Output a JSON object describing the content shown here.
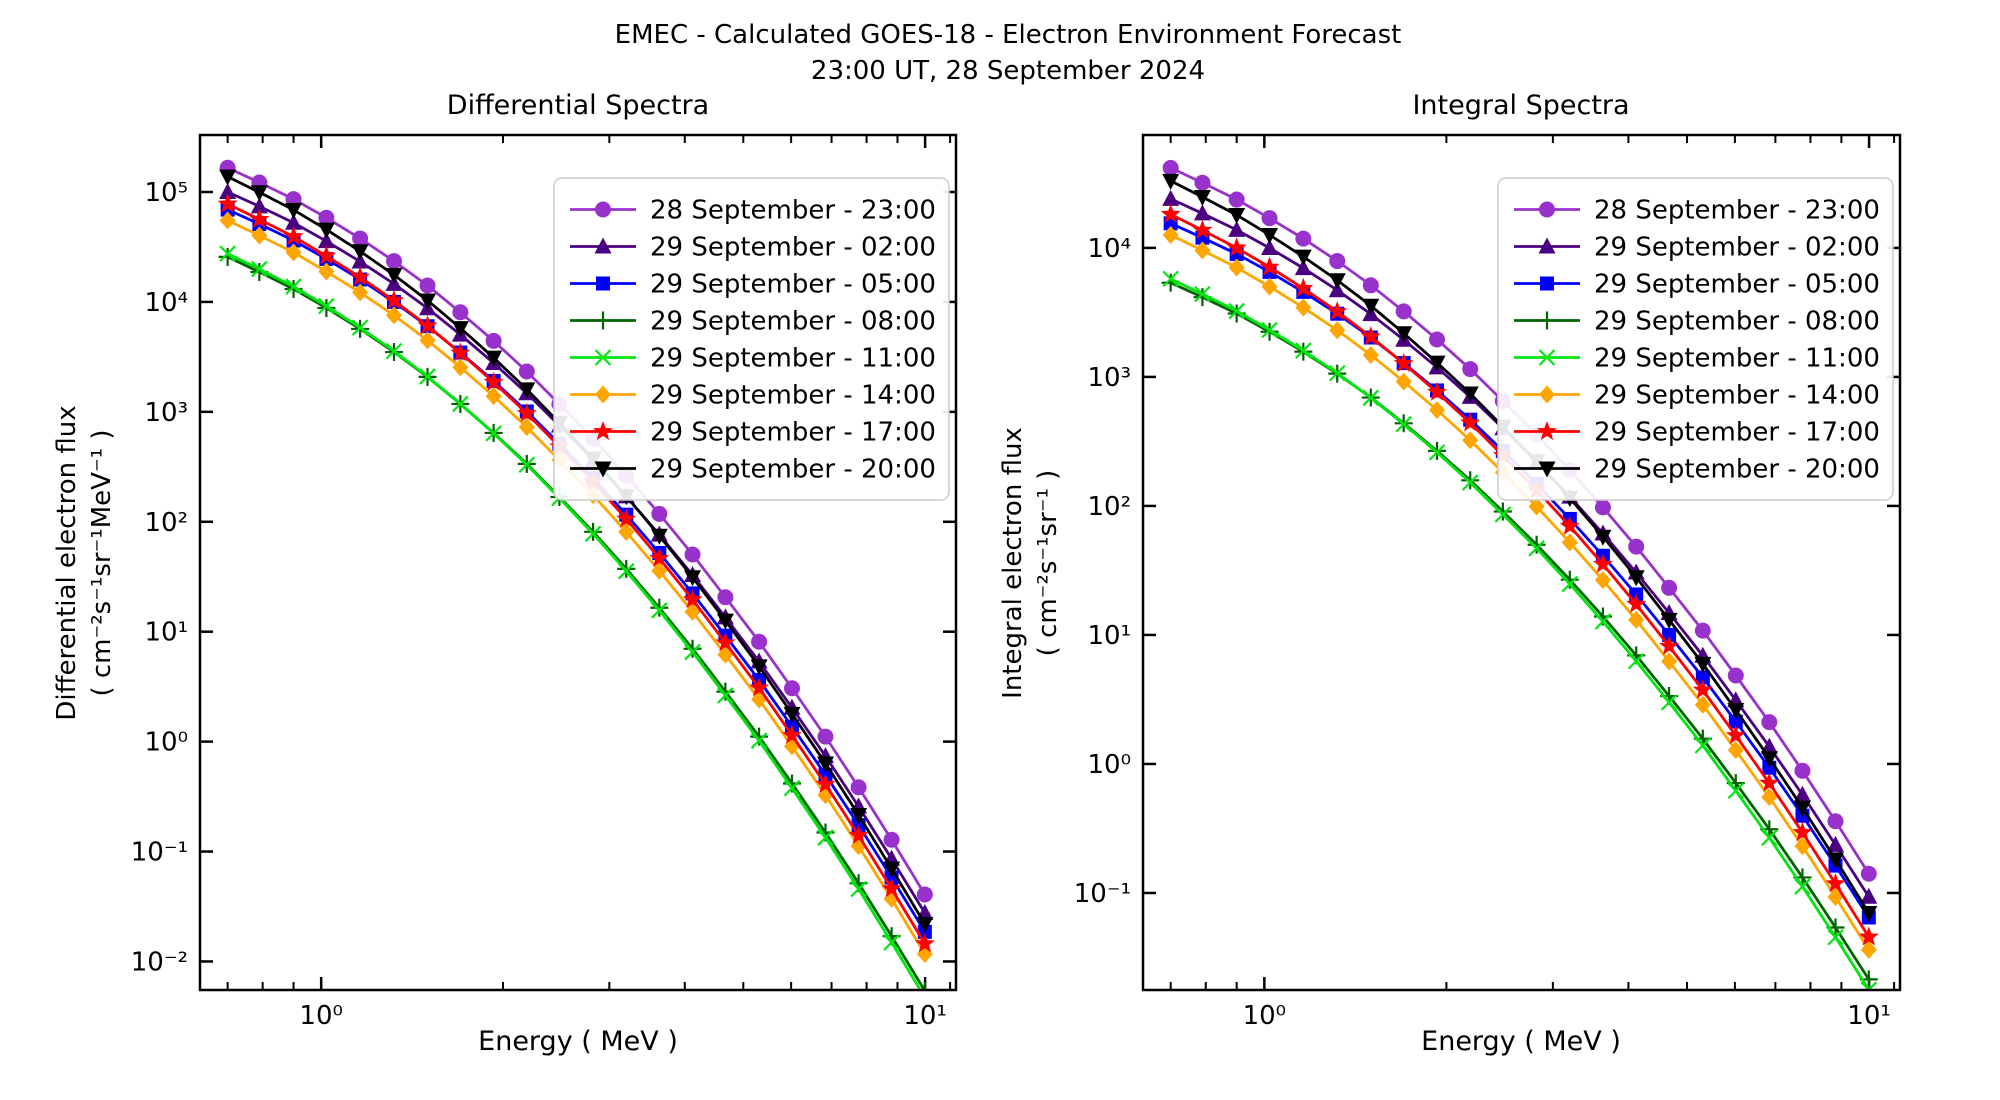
{
  "header": {
    "title_line1": "EMEC - Calculated GOES-18 - Electron Environment Forecast",
    "title_line2": "23:00 UT, 28 September 2024"
  },
  "chart_data": [
    {
      "type": "line",
      "title": "Differential Spectra",
      "xlabel": "Energy ( MeV )",
      "ylabel_line1": "Differential electron flux",
      "ylabel_line2": "( cm⁻²s⁻¹sr⁻¹MeV⁻¹ )",
      "xscale": "log",
      "yscale": "log",
      "grid": false,
      "legend_position": "upper right",
      "xlim": [
        0.63,
        11.25
      ],
      "ylim": [
        0.0055,
        330000
      ],
      "x_tick_exponents": [
        0,
        1
      ],
      "x_minor_ticks": [
        0.7,
        0.8,
        0.9,
        2,
        3,
        4,
        5,
        6,
        7,
        8,
        9,
        11
      ],
      "y_tick_exponents": [
        5,
        4,
        3,
        2,
        1,
        0,
        -1,
        -2
      ],
      "x": [
        0.7,
        0.79,
        0.9,
        1.02,
        1.16,
        1.32,
        1.5,
        1.7,
        1.93,
        2.19,
        2.48,
        2.82,
        3.2,
        3.63,
        4.12,
        4.67,
        5.31,
        6.02,
        6.84,
        7.76,
        8.8,
        9.99
      ],
      "series": [
        {
          "name": "28 September - 23:00",
          "color": "#9932CC",
          "marker": "circle",
          "values": [
            166000,
            122000,
            86100,
            58300,
            37800,
            23500,
            14100,
            8050,
            4420,
            2330,
            1175,
            569,
            264,
            118,
            50.4,
            20.6,
            8.11,
            3.06,
            1.11,
            0.384,
            0.128,
            0.0407
          ]
        },
        {
          "name": "29 September - 02:00",
          "color": "#4B0082",
          "marker": "triangle-up",
          "values": [
            100000,
            74000,
            52500,
            35700,
            23300,
            14600,
            8760,
            5040,
            2780,
            1475,
            749,
            365,
            170,
            76.4,
            32.8,
            13.5,
            5.35,
            2.03,
            0.737,
            0.257,
            0.086,
            0.0276
          ]
        },
        {
          "name": "29 September - 05:00",
          "color": "#0000FF",
          "marker": "square",
          "values": [
            69100,
            51100,
            36200,
            24600,
            16000,
            10000,
            6010,
            3460,
            1910,
            1008,
            512,
            249,
            116,
            52.0,
            22.3,
            9.19,
            3.63,
            1.37,
            0.499,
            0.174,
            0.058,
            0.0186
          ]
        },
        {
          "name": "29 September - 08:00",
          "color": "#006400",
          "marker": "plus",
          "values": [
            25700,
            18700,
            13100,
            8810,
            5680,
            3500,
            2080,
            1180,
            643,
            336,
            168,
            81.0,
            37.3,
            16.5,
            7.0,
            2.85,
            1.11,
            0.416,
            0.149,
            0.0514,
            0.017,
            0.0054
          ]
        },
        {
          "name": "29 September - 11:00",
          "color": "#00E60F",
          "marker": "x",
          "values": [
            27500,
            19900,
            13800,
            9170,
            5840,
            3570,
            2100,
            1180,
            637,
            330,
            164,
            77.8,
            35.5,
            15.6,
            6.53,
            2.63,
            1.02,
            0.377,
            0.134,
            0.0456,
            0.0149,
            0.0047
          ]
        },
        {
          "name": "29 September - 14:00",
          "color": "#FFA500",
          "marker": "diamond",
          "values": [
            55000,
            40200,
            28200,
            18900,
            12200,
            7550,
            4470,
            2540,
            1390,
            726,
            364,
            175,
            80.9,
            35.8,
            15.2,
            6.19,
            2.42,
            0.906,
            0.326,
            0.112,
            0.0371,
            0.0117
          ]
        },
        {
          "name": "29 September - 17:00",
          "color": "#FF0000",
          "marker": "star",
          "values": [
            77700,
            56400,
            39300,
            26200,
            16800,
            10300,
            6070,
            3430,
            1860,
            967,
            482,
            230,
            106,
            46.5,
            19.6,
            7.93,
            3.08,
            1.14,
            0.408,
            0.14,
            0.0459,
            0.0145
          ]
        },
        {
          "name": "29 September - 20:00",
          "color": "#000000",
          "marker": "triangle-down",
          "values": [
            138000,
            99400,
            68700,
            45500,
            28900,
            17600,
            10300,
            5780,
            3110,
            1600,
            793,
            376,
            171,
            74.7,
            31.3,
            12.6,
            4.84,
            1.79,
            0.633,
            0.215,
            0.07,
            0.0219
          ]
        }
      ]
    },
    {
      "type": "line",
      "title": "Integral Spectra",
      "xlabel": "Energy ( MeV )",
      "ylabel_line1": "Integral electron flux",
      "ylabel_line2": "( cm⁻²s⁻¹sr⁻¹ )",
      "xscale": "log",
      "yscale": "log",
      "grid": false,
      "legend_position": "upper right",
      "xlim": [
        0.63,
        11.25
      ],
      "ylim": [
        0.0177,
        75000
      ],
      "x_tick_exponents": [
        0,
        1
      ],
      "x_minor_ticks": [
        0.7,
        0.8,
        0.9,
        2,
        3,
        4,
        5,
        6,
        7,
        8,
        9,
        11
      ],
      "y_tick_exponents": [
        4,
        3,
        2,
        1,
        0,
        -1
      ],
      "x": [
        0.7,
        0.79,
        0.9,
        1.02,
        1.16,
        1.32,
        1.5,
        1.7,
        1.93,
        2.19,
        2.48,
        2.82,
        3.2,
        3.63,
        4.12,
        4.67,
        5.31,
        6.02,
        6.84,
        7.76,
        8.8,
        9.99
      ],
      "series": [
        {
          "name": "28 September - 23:00",
          "color": "#9932CC",
          "marker": "circle",
          "values": [
            41700,
            32000,
            23700,
            17000,
            11800,
            7910,
            5130,
            3220,
            1950,
            1150,
            651,
            357,
            190,
            97.4,
            48.4,
            23.2,
            10.8,
            4.85,
            2.11,
            0.885,
            0.36,
            0.141
          ]
        },
        {
          "name": "29 September - 02:00",
          "color": "#4B0082",
          "marker": "triangle-up",
          "values": [
            24000,
            18500,
            13800,
            9980,
            6970,
            4700,
            3070,
            1940,
            1185,
            700,
            400,
            221,
            118,
            61.1,
            30.5,
            14.8,
            6.9,
            3.12,
            1.36,
            0.577,
            0.236,
            0.0934
          ]
        },
        {
          "name": "29 September - 05:00",
          "color": "#0000FF",
          "marker": "square",
          "values": [
            15500,
            12000,
            8980,
            6510,
            4560,
            3090,
            2020,
            1280,
            785,
            466,
            267,
            148,
            79.3,
            41.1,
            20.6,
            10.0,
            4.69,
            2.13,
            0.935,
            0.397,
            0.163,
            0.0646
          ]
        },
        {
          "name": "29 September - 08:00",
          "color": "#006400",
          "marker": "plus",
          "values": [
            5370,
            4150,
            3100,
            2240,
            1570,
            1060,
            692,
            437,
            267,
            158,
            90.5,
            50.0,
            26.8,
            13.9,
            6.94,
            3.36,
            1.57,
            0.711,
            0.312,
            0.132,
            0.054,
            0.0214
          ]
        },
        {
          "name": "29 September - 11:00",
          "color": "#00E60F",
          "marker": "x",
          "values": [
            5750,
            4390,
            3240,
            2310,
            1600,
            1070,
            689,
            430,
            260,
            152,
            85.8,
            46.9,
            24.8,
            12.7,
            6.27,
            3.0,
            1.39,
            0.62,
            0.268,
            0.112,
            0.0454,
            0.0178
          ]
        },
        {
          "name": "29 September - 14:00",
          "color": "#FFA500",
          "marker": "diamond",
          "values": [
            12600,
            9570,
            7040,
            5010,
            3450,
            2300,
            1480,
            920,
            554,
            323,
            182,
            99.0,
            52.1,
            26.6,
            13.1,
            6.24,
            2.88,
            1.28,
            0.553,
            0.231,
            0.093,
            0.0363
          ]
        },
        {
          "name": "29 September - 17:00",
          "color": "#FF0000",
          "marker": "star",
          "values": [
            18200,
            13700,
            10000,
            7100,
            4860,
            3210,
            2050,
            1270,
            760,
            440,
            246,
            133,
            69.6,
            35.3,
            17.3,
            8.17,
            3.74,
            1.66,
            0.71,
            0.294,
            0.118,
            0.0456
          ]
        },
        {
          "name": "29 September - 20:00",
          "color": "#000000",
          "marker": "triangle-down",
          "values": [
            33100,
            24800,
            18000,
            12600,
            8550,
            5610,
            3560,
            2180,
            1290,
            743,
            412,
            221,
            115,
            57.7,
            28.0,
            13.1,
            5.97,
            2.62,
            1.11,
            0.458,
            0.182,
            0.0699
          ]
        }
      ]
    }
  ]
}
